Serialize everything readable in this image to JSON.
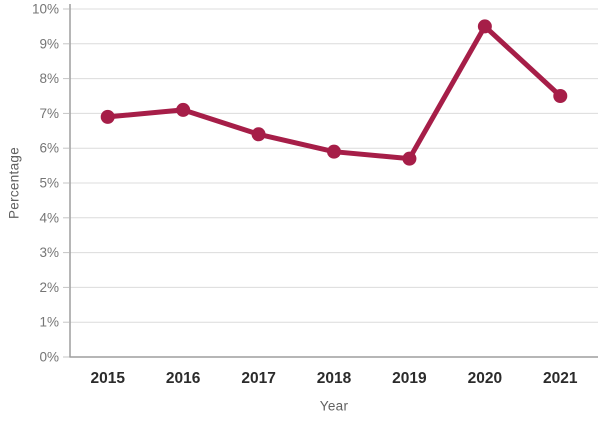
{
  "chart_data": {
    "type": "line",
    "title": "",
    "xlabel": "Year",
    "ylabel": "Percentage",
    "categories": [
      "2015",
      "2016",
      "2017",
      "2018",
      "2019",
      "2020",
      "2021"
    ],
    "series": [
      {
        "name": "Percentage",
        "values": [
          6.9,
          7.1,
          6.4,
          5.9,
          5.7,
          9.5,
          7.5
        ]
      }
    ],
    "ylim": [
      0,
      10
    ],
    "y_tick_step": 1,
    "y_tick_labels": [
      "0%",
      "1%",
      "2%",
      "3%",
      "4%",
      "5%",
      "6%",
      "7%",
      "8%",
      "9%",
      "10%"
    ],
    "grid": true,
    "legend": "none",
    "marker": "circle",
    "colors": {
      "line": "#A61E48",
      "grid": "#DCDCDC",
      "axis": "#9E9E9E",
      "tick": "#C4C4C4",
      "y_tick_label": "#757575",
      "x_tick_label": "#2B2B2B",
      "axis_title": "#616161",
      "background": "#FFFFFF"
    }
  }
}
